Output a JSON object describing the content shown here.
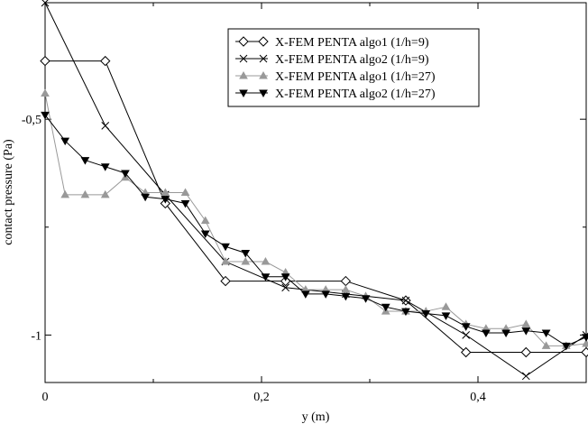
{
  "chart_data": {
    "type": "line",
    "title": "",
    "xlabel": "y (m)",
    "ylabel": "contact pressure (Pa)",
    "xlim": [
      0,
      0.5
    ],
    "ylim": [
      -1.11,
      -0.23
    ],
    "x_ticks": [
      0,
      0.2,
      0.4
    ],
    "x_tick_labels": [
      "0",
      "0,2",
      "0,4"
    ],
    "y_ticks": [
      -0.5,
      -1
    ],
    "y_tick_labels": [
      "-0,5",
      "-1"
    ],
    "grid": false,
    "legend_position": "top-right",
    "series": [
      {
        "name": "X-FEM PENTA algo1 (1/h=9)",
        "marker": "diamond",
        "color": "#000000",
        "x": [
          0,
          0.0556,
          0.1111,
          0.1667,
          0.2222,
          0.2778,
          0.3333,
          0.3889,
          0.4444,
          0.5
        ],
        "y": [
          -0.365,
          -0.365,
          -0.695,
          -0.875,
          -0.875,
          -0.875,
          -0.92,
          -1.04,
          -1.04,
          -1.04
        ]
      },
      {
        "name": "X-FEM PENTA algo2 (1/h=9)",
        "marker": "x",
        "color": "#000000",
        "x": [
          0,
          0.0556,
          0.1111,
          0.1667,
          0.2222,
          0.2778,
          0.3333,
          0.3889,
          0.4444,
          0.5
        ],
        "y": [
          -0.23,
          -0.515,
          -0.675,
          -0.83,
          -0.89,
          -0.905,
          -0.92,
          -1.0,
          -1.095,
          -1.0
        ]
      },
      {
        "name": "X-FEM PENTA algo1 (1/h=27)",
        "marker": "triangle-up",
        "color": "#999999",
        "x": [
          0,
          0.0185,
          0.037,
          0.0556,
          0.0741,
          0.0926,
          0.1111,
          0.1296,
          0.1481,
          0.1667,
          0.1852,
          0.2037,
          0.2222,
          0.2407,
          0.2593,
          0.2778,
          0.2963,
          0.3148,
          0.3333,
          0.3519,
          0.3704,
          0.3889,
          0.4074,
          0.4259,
          0.4444,
          0.463,
          0.4815,
          0.5
        ],
        "y": [
          -0.44,
          -0.675,
          -0.675,
          -0.675,
          -0.635,
          -0.67,
          -0.67,
          -0.67,
          -0.735,
          -0.83,
          -0.83,
          -0.83,
          -0.855,
          -0.895,
          -0.895,
          -0.895,
          -0.91,
          -0.945,
          -0.945,
          -0.945,
          -0.935,
          -0.975,
          -0.985,
          -0.985,
          -0.975,
          -1.025,
          -1.025,
          -1.02
        ]
      },
      {
        "name": "X-FEM PENTA algo2 (1/h=27)",
        "marker": "triangle-down",
        "color": "#000000",
        "x": [
          0,
          0.0185,
          0.037,
          0.0556,
          0.0741,
          0.0926,
          0.1111,
          0.1296,
          0.1481,
          0.1667,
          0.1852,
          0.2037,
          0.2222,
          0.2407,
          0.2593,
          0.2778,
          0.2963,
          0.3148,
          0.3333,
          0.3519,
          0.3704,
          0.3889,
          0.4074,
          0.4259,
          0.4444,
          0.463,
          0.4815,
          0.5
        ],
        "y": [
          -0.49,
          -0.55,
          -0.595,
          -0.61,
          -0.625,
          -0.68,
          -0.685,
          -0.695,
          -0.765,
          -0.795,
          -0.81,
          -0.865,
          -0.865,
          -0.905,
          -0.905,
          -0.91,
          -0.915,
          -0.935,
          -0.945,
          -0.95,
          -0.955,
          -0.98,
          -0.995,
          -0.995,
          -0.99,
          -0.995,
          -1.025,
          -1.005
        ]
      }
    ]
  }
}
